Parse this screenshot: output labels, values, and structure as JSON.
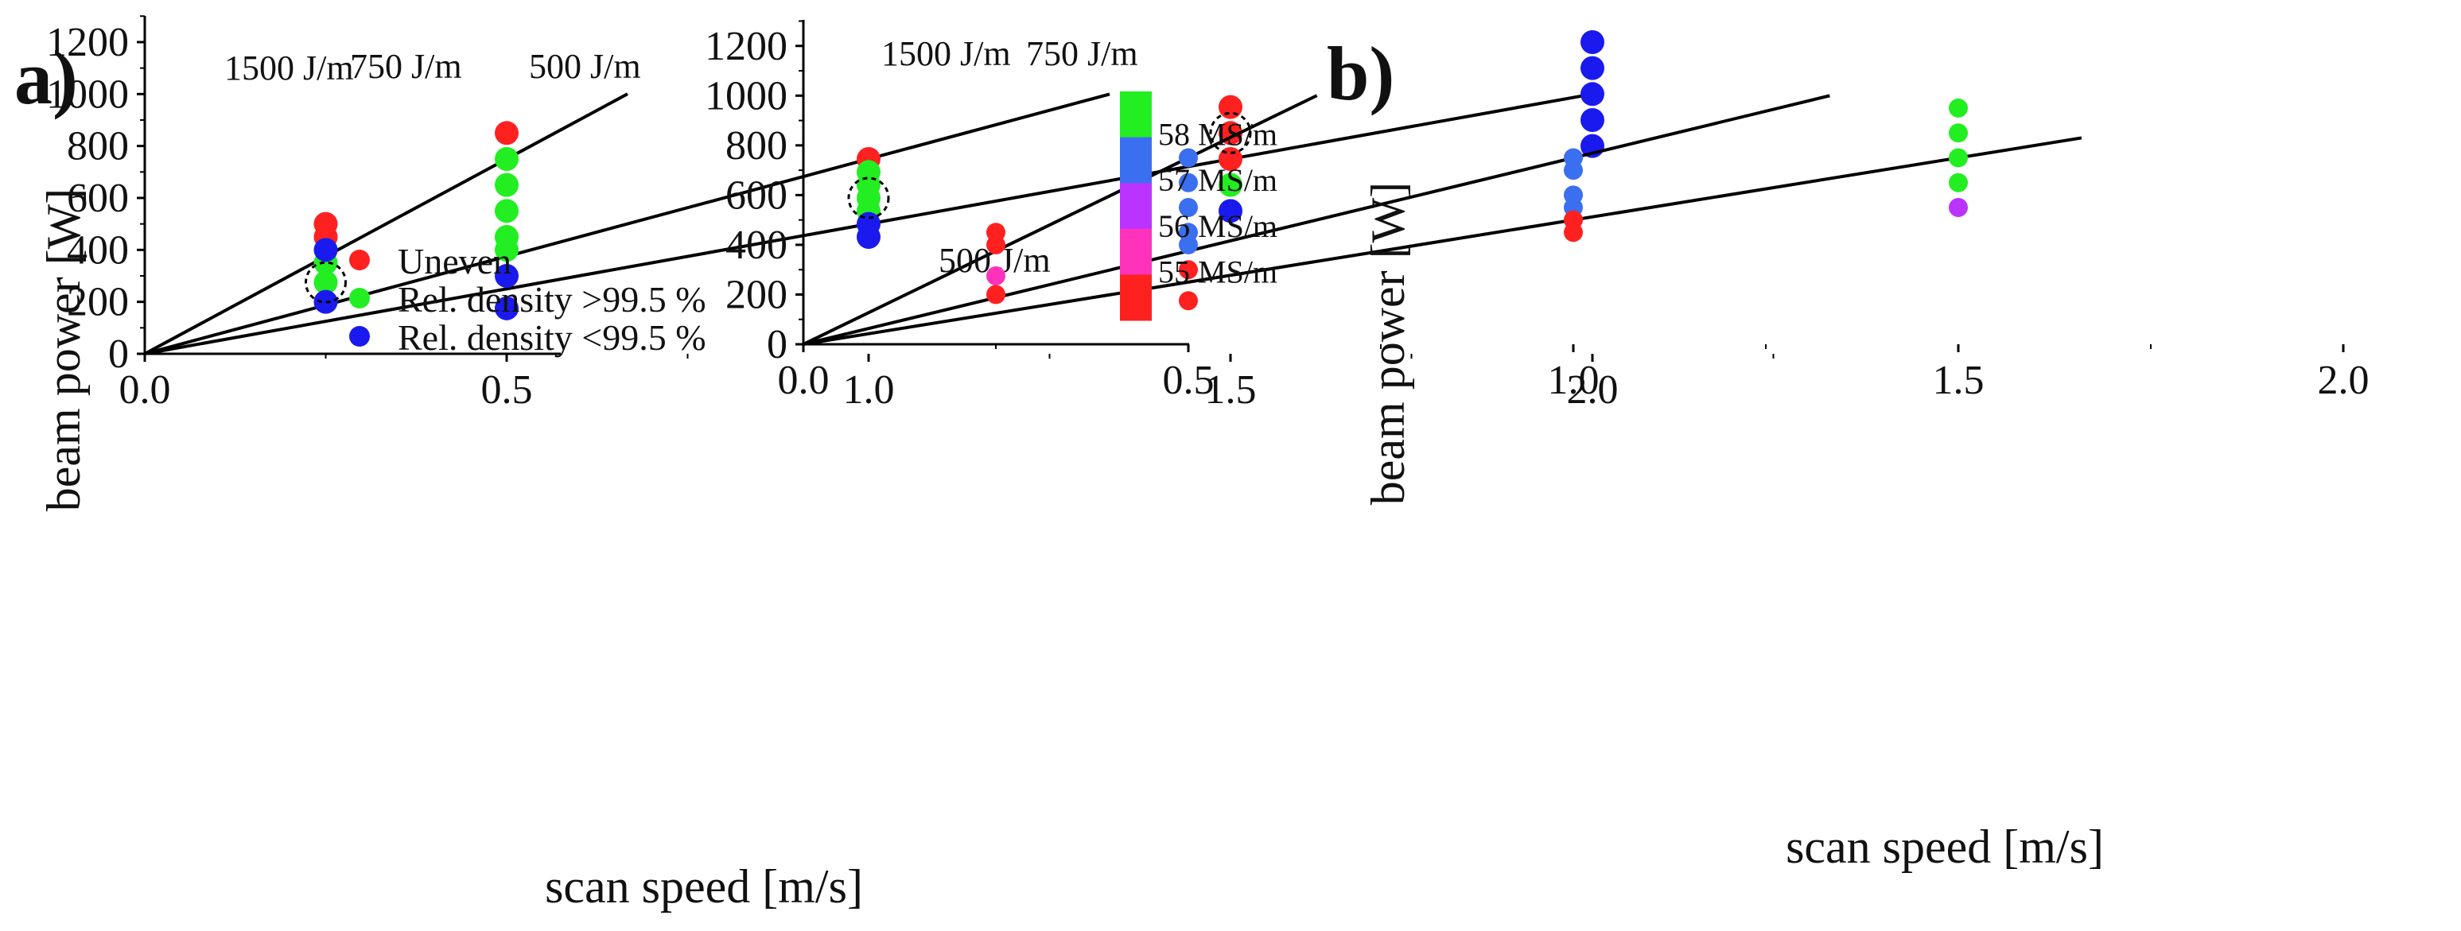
{
  "figure": {
    "panel_a_label": "a)",
    "panel_b_label": "b)"
  },
  "colors": {
    "uneven": "#ff2020",
    "dense": "#22ee22",
    "porous": "#1a1aee",
    "blue57": "#3a6fef",
    "line": "#000000"
  },
  "chart_data": [
    {
      "id": "a",
      "type": "scatter",
      "title": "",
      "xlabel": "scan speed [m/s]",
      "ylabel": "beam power [W]",
      "xlim": [
        0,
        2.3
      ],
      "ylim": [
        0,
        1300
      ],
      "xticks": [
        "0.0",
        "0.5",
        "1.0",
        "1.5",
        "2.0"
      ],
      "xtick_values": [
        0,
        0.5,
        1.0,
        1.5,
        2.0
      ],
      "yticks": [
        "0",
        "200",
        "400",
        "600",
        "800",
        "1000",
        "1200"
      ],
      "ytick_values": [
        0,
        200,
        400,
        600,
        800,
        1000,
        1200
      ],
      "energy_lines": [
        {
          "label": "1500 J/m",
          "slope": 1500,
          "x_end": 0.667
        },
        {
          "label": "750 J/m",
          "slope": 750,
          "x_end": 1.333
        },
        {
          "label": "500 J/m",
          "slope": 500,
          "x_end": 2.0
        }
      ],
      "series": [
        {
          "name": "Uneven",
          "color": "#ff2020",
          "points": [
            [
              0.25,
              500
            ],
            [
              0.25,
              450
            ],
            [
              0.5,
              850
            ],
            [
              1.0,
              750
            ],
            [
              1.5,
              950
            ],
            [
              1.5,
              850
            ],
            [
              1.5,
              750
            ]
          ]
        },
        {
          "name": "Rel. density >99.5 %",
          "color": "#22ee22",
          "points": [
            [
              0.25,
              350
            ],
            [
              0.25,
              275
            ],
            [
              0.5,
              750
            ],
            [
              0.5,
              650
            ],
            [
              0.5,
              550
            ],
            [
              0.5,
              450
            ],
            [
              0.5,
              400
            ],
            [
              1.0,
              700
            ],
            [
              1.0,
              650
            ],
            [
              1.0,
              600
            ],
            [
              1.0,
              550
            ],
            [
              1.5,
              650
            ]
          ]
        },
        {
          "name": "Rel. density <99.5 %",
          "color": "#1a1aee",
          "points": [
            [
              0.25,
              400
            ],
            [
              0.25,
              200
            ],
            [
              0.5,
              300
            ],
            [
              0.5,
              175
            ],
            [
              1.0,
              500
            ],
            [
              1.0,
              450
            ],
            [
              1.5,
              550
            ],
            [
              2.0,
              1200
            ],
            [
              2.0,
              1100
            ],
            [
              2.0,
              1000
            ],
            [
              2.0,
              900
            ],
            [
              2.0,
              800
            ]
          ]
        }
      ],
      "highlighted_points": [
        [
          0.25,
          275
        ],
        [
          1.0,
          600
        ],
        [
          1.5,
          850
        ]
      ],
      "legend": {
        "position": "bottom-right",
        "entries": [
          "Uneven",
          "Rel. density >99.5 %",
          "Rel. density <99.5 %"
        ]
      }
    },
    {
      "id": "b",
      "type": "scatter",
      "title": "",
      "xlabel": "scan speed [m/s]",
      "ylabel": "beam power [W]",
      "xlim": [
        0,
        2.0
      ],
      "ylim": [
        0,
        1300
      ],
      "xticks": [
        "0.0",
        "0.5",
        "1.0",
        "1.5",
        "2.0"
      ],
      "xtick_values": [
        0,
        0.5,
        1.0,
        1.5,
        2.0
      ],
      "yticks": [
        "0",
        "200",
        "400",
        "600",
        "800",
        "1000",
        "1200"
      ],
      "ytick_values": [
        0,
        200,
        400,
        600,
        800,
        1000,
        1200
      ],
      "energy_lines": [
        {
          "label": "1500 J/m",
          "slope": 1500,
          "x_end": 0.667
        },
        {
          "label": "750 J/m",
          "slope": 750,
          "x_end": 1.333
        },
        {
          "label": "500 J/m",
          "slope": 500,
          "x_end": 1.66
        }
      ],
      "points": [
        {
          "x": 0.25,
          "y": 450,
          "color": "#ff2020"
        },
        {
          "x": 0.25,
          "y": 400,
          "color": "#ff2020"
        },
        {
          "x": 0.25,
          "y": 275,
          "color": "#ff33bb"
        },
        {
          "x": 0.25,
          "y": 200,
          "color": "#ff2020"
        },
        {
          "x": 0.5,
          "y": 750,
          "color": "#3a6fef"
        },
        {
          "x": 0.5,
          "y": 650,
          "color": "#3a6fef"
        },
        {
          "x": 0.5,
          "y": 550,
          "color": "#3a6fef"
        },
        {
          "x": 0.5,
          "y": 450,
          "color": "#3a6fef"
        },
        {
          "x": 0.5,
          "y": 400,
          "color": "#3a6fef"
        },
        {
          "x": 0.5,
          "y": 300,
          "color": "#ff2020"
        },
        {
          "x": 0.5,
          "y": 175,
          "color": "#ff2020"
        },
        {
          "x": 1.0,
          "y": 750,
          "color": "#3a6fef"
        },
        {
          "x": 1.0,
          "y": 700,
          "color": "#3a6fef"
        },
        {
          "x": 1.0,
          "y": 600,
          "color": "#3a6fef"
        },
        {
          "x": 1.0,
          "y": 550,
          "color": "#3a6fef"
        },
        {
          "x": 1.0,
          "y": 500,
          "color": "#ff2020"
        },
        {
          "x": 1.0,
          "y": 450,
          "color": "#ff2020"
        },
        {
          "x": 1.5,
          "y": 950,
          "color": "#22ee22"
        },
        {
          "x": 1.5,
          "y": 850,
          "color": "#22ee22"
        },
        {
          "x": 1.5,
          "y": 750,
          "color": "#22ee22"
        },
        {
          "x": 1.5,
          "y": 650,
          "color": "#22ee22"
        },
        {
          "x": 1.5,
          "y": 550,
          "color": "#bb33ff"
        }
      ],
      "colorbar": {
        "segments": [
          {
            "color": "#22ee22"
          },
          {
            "color": "#3a6fef",
            "label": "58 MS/m"
          },
          {
            "color": "#bb33ff",
            "label": "57 MS/m"
          },
          {
            "color": "#ff33bb",
            "label": "56 MS/m"
          },
          {
            "color": "#ff2020",
            "label": "55 MS/m"
          }
        ]
      }
    }
  ]
}
